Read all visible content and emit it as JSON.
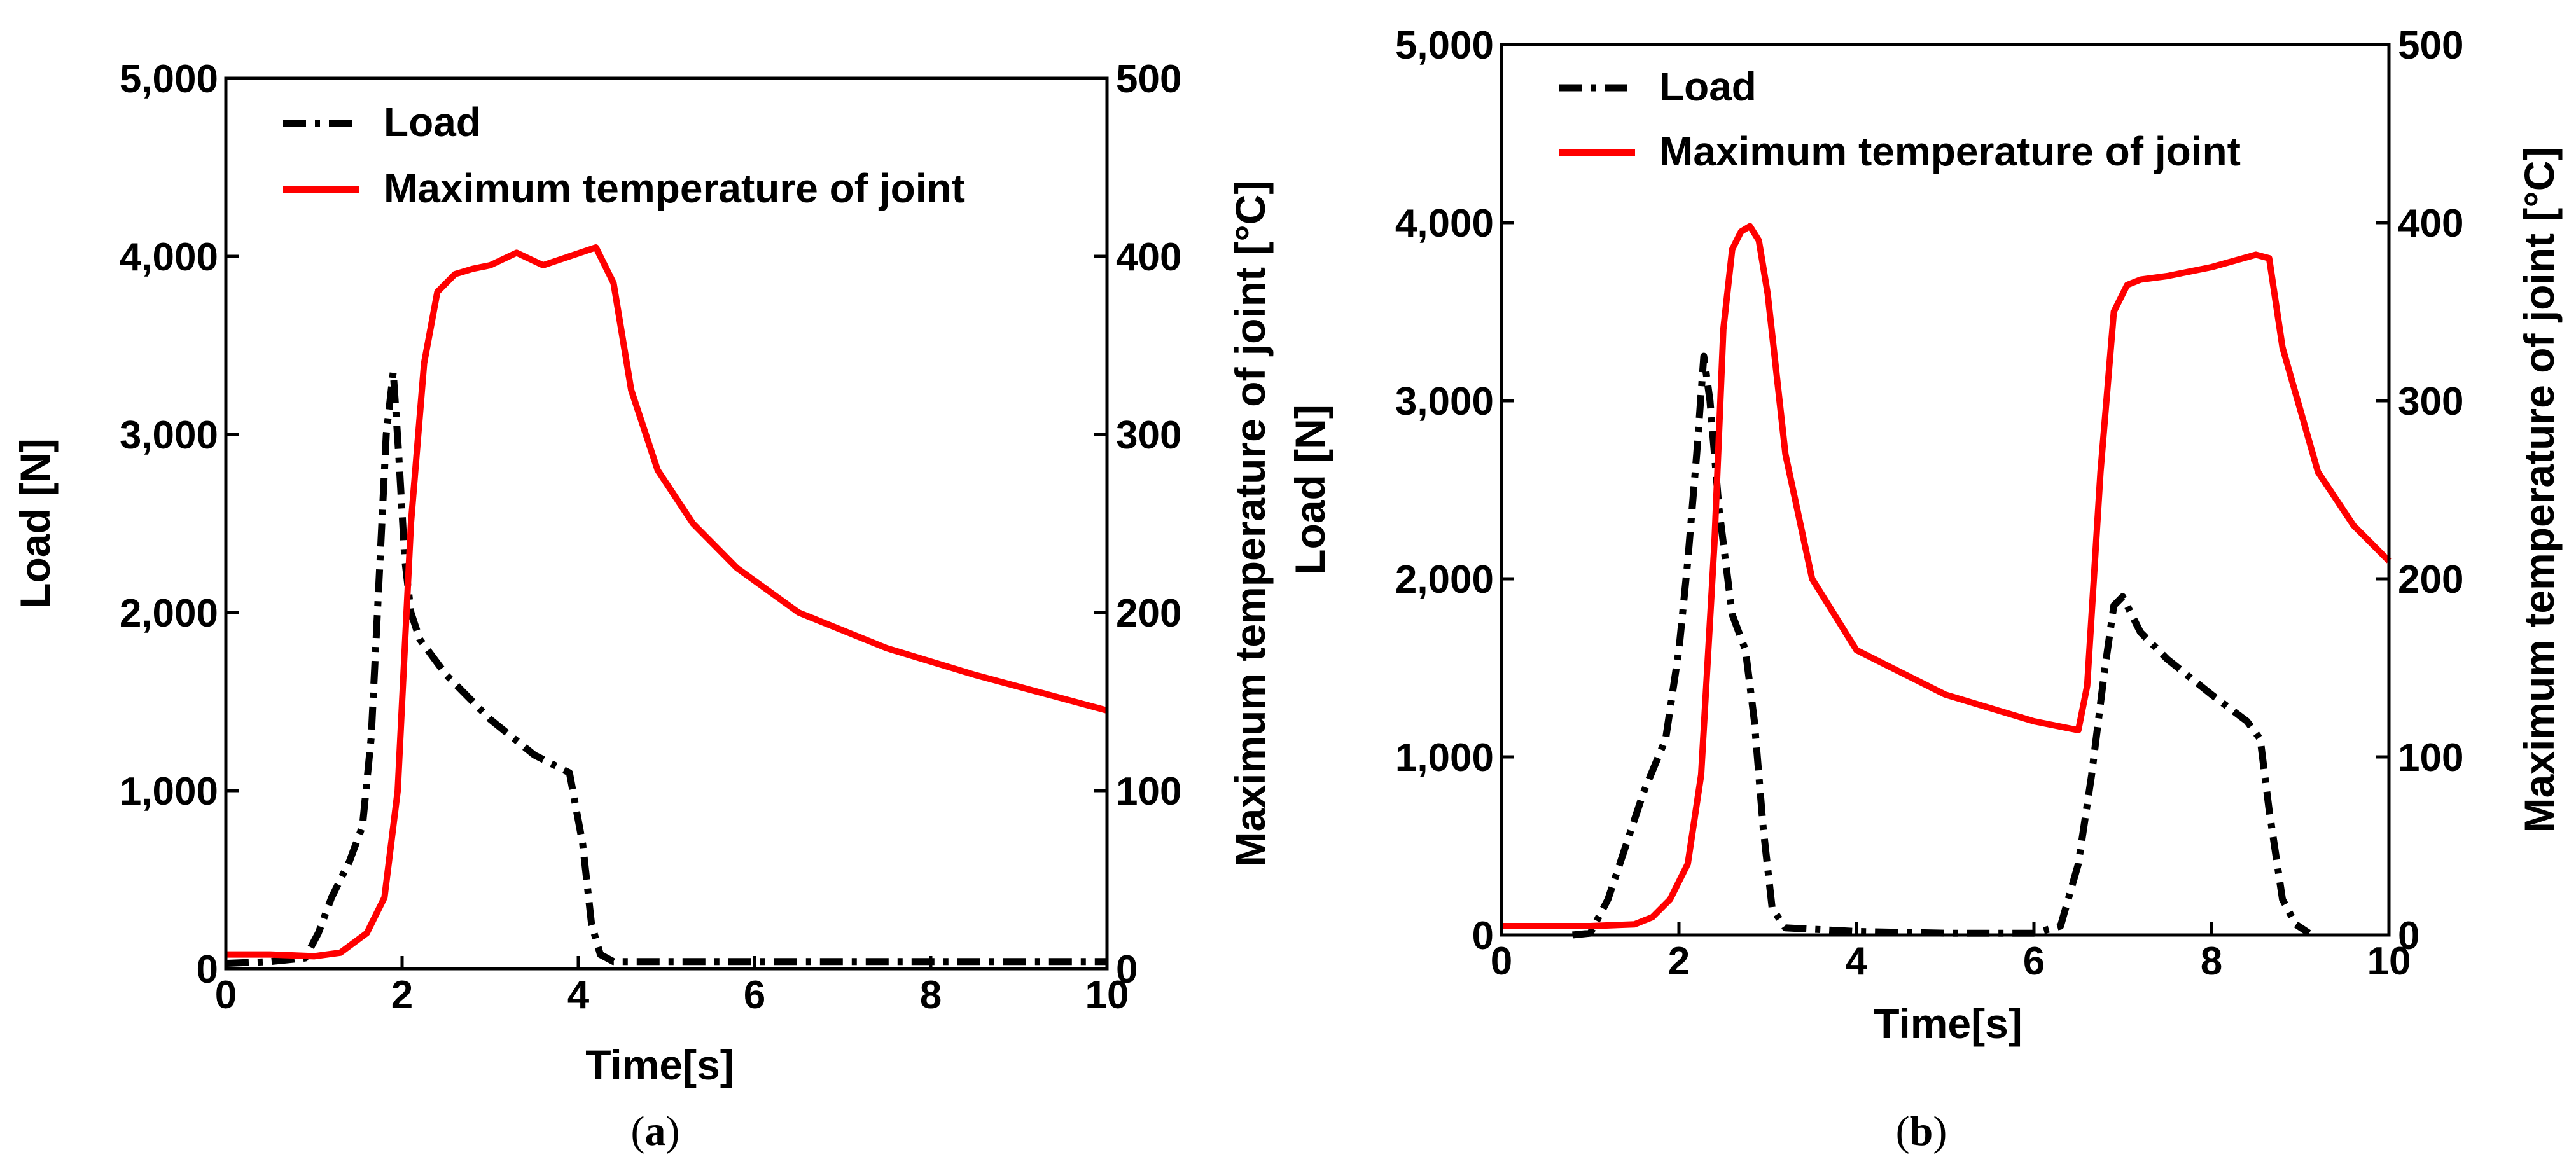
{
  "figure": {
    "colors": {
      "load": "#000000",
      "temperature": "#ff0000"
    }
  },
  "chart_data": [
    {
      "type": "line",
      "caption": "(a)",
      "caption_letter": "a",
      "xlabel": "Time[s]",
      "ylabel_left": "Load [N]",
      "ylabel_right": "Maximum temperature of joint [°C]",
      "xlim": [
        0,
        10
      ],
      "ylim_left": [
        0,
        5000
      ],
      "ylim_right": [
        0,
        500
      ],
      "x_ticks": [
        "0",
        "2",
        "4",
        "6",
        "8",
        "10"
      ],
      "y_left_ticks": [
        "0",
        "1,000",
        "2,000",
        "3,000",
        "4,000",
        "5,000"
      ],
      "y_right_ticks": [
        "0",
        "100",
        "200",
        "300",
        "400",
        "500"
      ],
      "legend": {
        "position": "top-left",
        "entries": [
          "Load",
          "Maximum temperature of joint"
        ]
      },
      "series": [
        {
          "name": "Load",
          "axis": "left",
          "style": "dash-dot",
          "x": [
            0,
            0.5,
            0.9,
            1.05,
            1.2,
            1.4,
            1.55,
            1.65,
            1.75,
            1.82,
            1.9,
            1.96,
            2.03,
            2.1,
            2.2,
            2.5,
            3.0,
            3.5,
            3.9,
            4.05,
            4.15,
            4.25,
            4.4,
            5,
            6,
            7,
            8,
            9,
            10
          ],
          "y": [
            30,
            40,
            60,
            200,
            400,
            600,
            800,
            1300,
            2300,
            3000,
            3350,
            2900,
            2300,
            2000,
            1850,
            1650,
            1400,
            1200,
            1100,
            700,
            250,
            80,
            40,
            40,
            40,
            40,
            40,
            40,
            40
          ]
        },
        {
          "name": "Maximum temperature of joint",
          "axis": "right",
          "style": "solid",
          "x": [
            0,
            0.5,
            1.0,
            1.3,
            1.6,
            1.8,
            1.95,
            2.1,
            2.25,
            2.4,
            2.6,
            2.8,
            3.0,
            3.3,
            3.6,
            3.9,
            4.2,
            4.4,
            4.6,
            4.9,
            5.3,
            5.8,
            6.5,
            7.5,
            8.5,
            10
          ],
          "y": [
            8,
            8,
            7,
            9,
            20,
            40,
            100,
            250,
            340,
            380,
            390,
            393,
            395,
            402,
            395,
            400,
            405,
            385,
            325,
            280,
            250,
            225,
            200,
            180,
            165,
            145
          ]
        }
      ]
    },
    {
      "type": "line",
      "caption": "(b)",
      "caption_letter": "b",
      "xlabel": "Time[s]",
      "ylabel_left": "Load [N]",
      "ylabel_right": "Maximum temperature of joint [°C]",
      "xlim": [
        0,
        10
      ],
      "ylim_left": [
        0,
        5000
      ],
      "ylim_right": [
        0,
        500
      ],
      "x_ticks": [
        "0",
        "2",
        "4",
        "6",
        "8",
        "10"
      ],
      "y_left_ticks": [
        "0",
        "1,000",
        "2,000",
        "3,000",
        "4,000",
        "5,000"
      ],
      "y_right_ticks": [
        "0",
        "100",
        "200",
        "300",
        "400",
        "500"
      ],
      "legend": {
        "position": "top-left",
        "entries": [
          "Load",
          "Maximum temperature of joint"
        ]
      },
      "series": [
        {
          "name": "Load",
          "axis": "left",
          "style": "dash-dot",
          "x": [
            0.8,
            1.0,
            1.2,
            1.4,
            1.6,
            1.85,
            2.0,
            2.1,
            2.2,
            2.28,
            2.35,
            2.45,
            2.6,
            2.75,
            2.85,
            2.95,
            3.05,
            3.2,
            4,
            5,
            6,
            6.3,
            6.5,
            6.65,
            6.8,
            6.9,
            7.0,
            7.2,
            7.5,
            8.0,
            8.4,
            8.55,
            8.65,
            8.8,
            8.95,
            9.1
          ],
          "y": [
            0,
            10,
            200,
            500,
            800,
            1100,
            1600,
            2100,
            2700,
            3250,
            3000,
            2400,
            1800,
            1600,
            1200,
            600,
            150,
            40,
            20,
            10,
            10,
            50,
            400,
            900,
            1500,
            1850,
            1900,
            1700,
            1550,
            1350,
            1200,
            1100,
            700,
            200,
            60,
            10
          ]
        },
        {
          "name": "Maximum temperature of joint",
          "axis": "right",
          "style": "solid",
          "x": [
            0,
            0.5,
            1.0,
            1.5,
            1.7,
            1.9,
            2.1,
            2.25,
            2.4,
            2.5,
            2.6,
            2.7,
            2.8,
            2.9,
            3.0,
            3.2,
            3.5,
            4.0,
            5.0,
            6.0,
            6.5,
            6.6,
            6.75,
            6.9,
            7.05,
            7.2,
            7.5,
            8.0,
            8.5,
            8.65,
            8.8,
            9.2,
            9.6,
            10
          ],
          "y": [
            5,
            5,
            5,
            6,
            10,
            20,
            40,
            90,
            220,
            340,
            385,
            395,
            398,
            390,
            360,
            270,
            200,
            160,
            135,
            120,
            115,
            140,
            260,
            350,
            365,
            368,
            370,
            375,
            382,
            380,
            330,
            260,
            230,
            210
          ]
        }
      ]
    }
  ]
}
